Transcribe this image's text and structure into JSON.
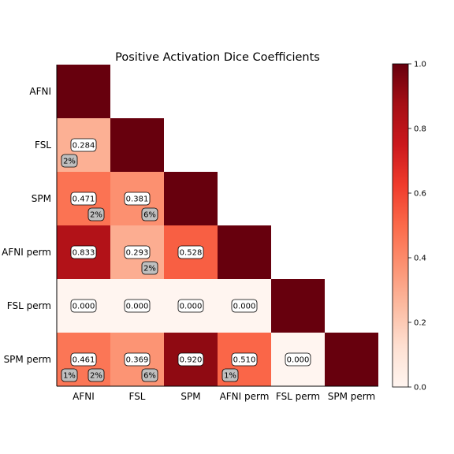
{
  "chart_data": {
    "type": "heatmap",
    "title": "Positive Activation Dice Coefficients",
    "row_labels": [
      "AFNI",
      "FSL",
      "SPM",
      "AFNI perm",
      "FSL perm",
      "SPM perm"
    ],
    "col_labels": [
      "AFNI",
      "FSL",
      "SPM",
      "AFNI perm",
      "FSL perm",
      "SPM perm"
    ],
    "values": [
      [
        1.0,
        null,
        null,
        null,
        null,
        null
      ],
      [
        0.284,
        1.0,
        null,
        null,
        null,
        null
      ],
      [
        0.471,
        0.381,
        1.0,
        null,
        null,
        null
      ],
      [
        0.833,
        0.293,
        0.528,
        1.0,
        null,
        null
      ],
      [
        0.0,
        0.0,
        0.0,
        0.0,
        1.0,
        null
      ],
      [
        0.461,
        0.369,
        0.92,
        0.51,
        0.0,
        1.0
      ]
    ],
    "value_labels": [
      {
        "row": 1,
        "col": 0,
        "text": "0.284"
      },
      {
        "row": 2,
        "col": 0,
        "text": "0.471"
      },
      {
        "row": 2,
        "col": 1,
        "text": "0.381"
      },
      {
        "row": 3,
        "col": 0,
        "text": "0.833"
      },
      {
        "row": 3,
        "col": 1,
        "text": "0.293"
      },
      {
        "row": 3,
        "col": 2,
        "text": "0.528"
      },
      {
        "row": 4,
        "col": 0,
        "text": "0.000"
      },
      {
        "row": 4,
        "col": 1,
        "text": "0.000"
      },
      {
        "row": 4,
        "col": 2,
        "text": "0.000"
      },
      {
        "row": 4,
        "col": 3,
        "text": "0.000"
      },
      {
        "row": 5,
        "col": 0,
        "text": "0.461"
      },
      {
        "row": 5,
        "col": 1,
        "text": "0.369"
      },
      {
        "row": 5,
        "col": 2,
        "text": "0.920"
      },
      {
        "row": 5,
        "col": 3,
        "text": "0.510"
      },
      {
        "row": 5,
        "col": 4,
        "text": "0.000"
      }
    ],
    "percent_badges": [
      {
        "row": 1,
        "col": 0,
        "corner": "left",
        "text": "2%"
      },
      {
        "row": 2,
        "col": 0,
        "corner": "right",
        "text": "2%"
      },
      {
        "row": 2,
        "col": 1,
        "corner": "right",
        "text": "6%"
      },
      {
        "row": 3,
        "col": 1,
        "corner": "right",
        "text": "2%"
      },
      {
        "row": 5,
        "col": 0,
        "corner": "left",
        "text": "1%"
      },
      {
        "row": 5,
        "col": 0,
        "corner": "right",
        "text": "2%"
      },
      {
        "row": 5,
        "col": 1,
        "corner": "right",
        "text": "6%"
      },
      {
        "row": 5,
        "col": 3,
        "corner": "left",
        "text": "1%"
      }
    ],
    "colormap": "Reds",
    "colorbar": {
      "range": [
        0.0,
        1.0
      ],
      "ticks": [
        0.0,
        0.2,
        0.4,
        0.6,
        0.8,
        1.0
      ],
      "tick_labels": [
        "0.0",
        "0.2",
        "0.4",
        "0.6",
        "0.8",
        "1.0"
      ]
    },
    "grid": false
  }
}
